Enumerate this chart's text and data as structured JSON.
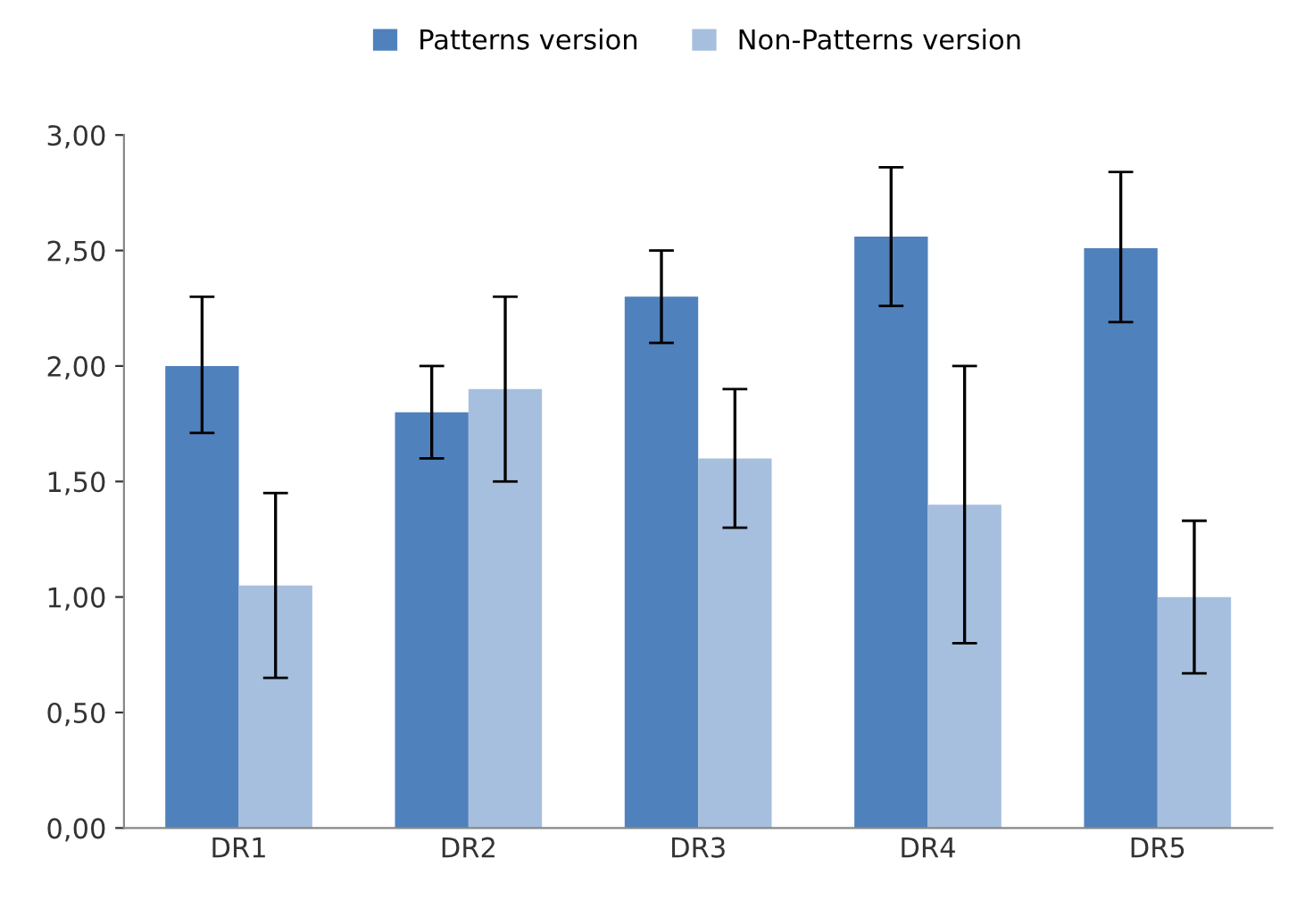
{
  "chart_data": {
    "type": "bar",
    "categories": [
      "DR1",
      "DR2",
      "DR3",
      "DR4",
      "DR5"
    ],
    "series": [
      {
        "name": "Patterns version",
        "color": "#4f81bd",
        "values": [
          2.0,
          1.8,
          2.3,
          2.56,
          2.51
        ],
        "errors": [
          [
            1.71,
            2.3
          ],
          [
            1.6,
            2.0
          ],
          [
            2.1,
            2.5
          ],
          [
            2.26,
            2.86
          ],
          [
            2.19,
            2.84
          ]
        ]
      },
      {
        "name": "Non-Patterns version",
        "color": "#a7bfde",
        "values": [
          1.05,
          1.9,
          1.6,
          1.4,
          1.0
        ],
        "errors": [
          [
            0.65,
            1.45
          ],
          [
            1.5,
            2.3
          ],
          [
            1.3,
            1.9
          ],
          [
            0.8,
            2.0
          ],
          [
            0.67,
            1.33
          ]
        ]
      }
    ],
    "ylim": [
      0,
      3
    ],
    "yticks": [
      {
        "value": 0,
        "label": "0,00"
      },
      {
        "value": 0.5,
        "label": "0,50"
      },
      {
        "value": 1,
        "label": "1,00"
      },
      {
        "value": 1.5,
        "label": "1,50"
      },
      {
        "value": 2,
        "label": "2,00"
      },
      {
        "value": 2.5,
        "label": "2,50"
      },
      {
        "value": 3,
        "label": "3,00"
      }
    ],
    "grid": false,
    "legend": "top"
  }
}
